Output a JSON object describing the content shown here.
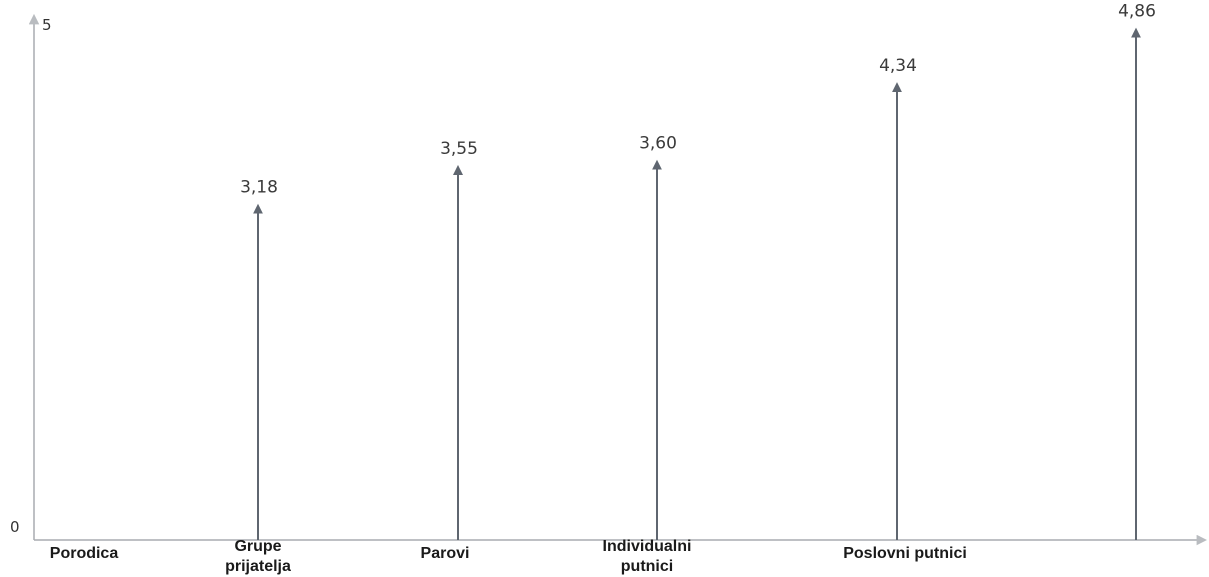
{
  "chart_data": {
    "type": "bar",
    "categories": [
      [
        "Porodica"
      ],
      [
        "Grupe",
        "prijatelja"
      ],
      [
        "Parovi"
      ],
      [
        "Individualni",
        "putnici"
      ],
      [
        "Poslovni putnici"
      ],
      [
        ""
      ]
    ],
    "values": [
      null,
      3.18,
      3.55,
      3.6,
      4.34,
      4.86
    ],
    "value_labels": [
      "",
      "3,18",
      "3,55",
      "3,60",
      "4,34",
      "4,86"
    ],
    "ylim": [
      0,
      5
    ],
    "y_tick_labels": [
      "0",
      "5"
    ],
    "grid": false,
    "legend": "none",
    "colors": {
      "mark": "#5f6670",
      "axis": "#a9acb0",
      "label": "#3a3a3a"
    }
  }
}
